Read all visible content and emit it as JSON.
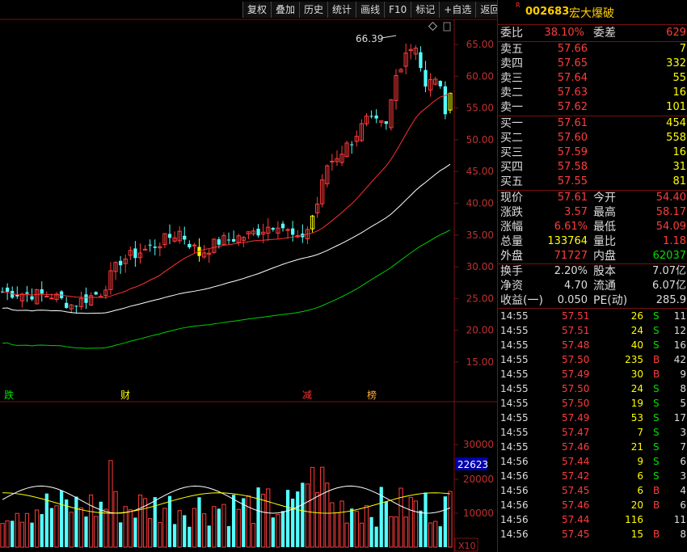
{
  "toolbar": [
    "复权",
    "叠加",
    "历史",
    "统计",
    "画线",
    "F10",
    "标记",
    "+自选",
    "返回"
  ],
  "chart": {
    "price_axis": [
      "65.00",
      "60.00",
      "55.00",
      "50.00",
      "45.00",
      "40.00",
      "35.00",
      "30.00",
      "25.00",
      "20.00",
      "15.00"
    ],
    "volume_axis": [
      "30000",
      "20000",
      "10000"
    ],
    "volume_current": "22623",
    "volume_unit": "X10",
    "high_label": "66.39",
    "event_markers": [
      "跌",
      "财",
      "减",
      "榜"
    ]
  },
  "stock": {
    "code": "002683",
    "name": "宏大爆破",
    "badge": "R"
  },
  "weibi": {
    "label": "委比",
    "value": "38.10%",
    "label2": "委差",
    "value2": "629"
  },
  "asks": [
    {
      "label": "卖五",
      "price": "57.66",
      "vol": "7"
    },
    {
      "label": "卖四",
      "price": "57.65",
      "vol": "332"
    },
    {
      "label": "卖三",
      "price": "57.64",
      "vol": "55"
    },
    {
      "label": "卖二",
      "price": "57.63",
      "vol": "16"
    },
    {
      "label": "卖一",
      "price": "57.62",
      "vol": "101"
    }
  ],
  "bids": [
    {
      "label": "买一",
      "price": "57.61",
      "vol": "454"
    },
    {
      "label": "买二",
      "price": "57.60",
      "vol": "558"
    },
    {
      "label": "买三",
      "price": "57.59",
      "vol": "16"
    },
    {
      "label": "买四",
      "price": "57.58",
      "vol": "31"
    },
    {
      "label": "买五",
      "price": "57.55",
      "vol": "81"
    }
  ],
  "quote": [
    {
      "l1": "现价",
      "v1": "57.61",
      "l2": "今开",
      "v2": "54.40"
    },
    {
      "l1": "涨跌",
      "v1": "3.57",
      "l2": "最高",
      "v2": "58.17"
    },
    {
      "l1": "涨幅",
      "v1": "6.61%",
      "l2": "最低",
      "v2": "54.09"
    },
    {
      "l1": "总量",
      "v1": "133764",
      "l2": "量比",
      "v2": "1.18"
    },
    {
      "l1": "外盘",
      "v1": "71727",
      "l2": "内盘",
      "v2": "62037"
    }
  ],
  "fund": [
    {
      "l1": "换手",
      "v1": "2.20%",
      "l2": "股本",
      "v2": "7.07亿"
    },
    {
      "l1": "净资",
      "v1": "4.70",
      "l2": "流通",
      "v2": "6.07亿"
    },
    {
      "l1": "收益(一)",
      "v1": "0.050",
      "l2": "PE(动)",
      "v2": "285.9"
    }
  ],
  "ticks": [
    {
      "time": "14:55",
      "price": "57.51",
      "vol": "26",
      "bs": "S",
      "n": "11"
    },
    {
      "time": "14:55",
      "price": "57.51",
      "vol": "24",
      "bs": "S",
      "n": "12"
    },
    {
      "time": "14:55",
      "price": "57.48",
      "vol": "40",
      "bs": "S",
      "n": "16"
    },
    {
      "time": "14:55",
      "price": "57.50",
      "vol": "235",
      "bs": "B",
      "n": "42"
    },
    {
      "time": "14:55",
      "price": "57.49",
      "vol": "30",
      "bs": "B",
      "n": "9"
    },
    {
      "time": "14:55",
      "price": "57.50",
      "vol": "24",
      "bs": "S",
      "n": "8"
    },
    {
      "time": "14:55",
      "price": "57.50",
      "vol": "19",
      "bs": "S",
      "n": "5"
    },
    {
      "time": "14:55",
      "price": "57.49",
      "vol": "53",
      "bs": "S",
      "n": "17"
    },
    {
      "time": "14:55",
      "price": "57.47",
      "vol": "7",
      "bs": "S",
      "n": "3"
    },
    {
      "time": "14:55",
      "price": "57.46",
      "vol": "21",
      "bs": "S",
      "n": "7"
    },
    {
      "time": "14:56",
      "price": "57.44",
      "vol": "9",
      "bs": "S",
      "n": "6"
    },
    {
      "time": "14:56",
      "price": "57.42",
      "vol": "6",
      "bs": "S",
      "n": "3"
    },
    {
      "time": "14:56",
      "price": "57.45",
      "vol": "6",
      "bs": "B",
      "n": "4"
    },
    {
      "time": "14:56",
      "price": "57.46",
      "vol": "20",
      "bs": "B",
      "n": "6"
    },
    {
      "time": "14:56",
      "price": "57.44",
      "vol": "116",
      "bs": "",
      "n": "11"
    },
    {
      "time": "14:56",
      "price": "57.45",
      "vol": "15",
      "bs": "B",
      "n": "8"
    }
  ],
  "colors": {
    "up": "#ff3c3c",
    "down": "#54ffff",
    "ma5": "#ffffff",
    "ma10": "#ffff00",
    "ma20": "#ff3030",
    "ma60": "#00d000"
  }
}
